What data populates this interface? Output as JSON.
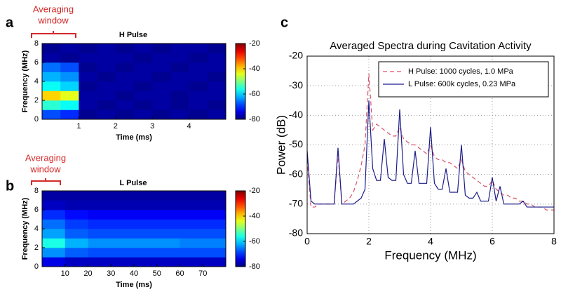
{
  "chart_data": [
    {
      "type": "heatmap",
      "label": "a",
      "title": "H Pulse",
      "annotation": [
        "Averaging",
        "window"
      ],
      "xlabel": "Time (ms)",
      "ylabel": "Frequency (MHz)",
      "cmap": "jet",
      "xbins": [
        0,
        0.5,
        1,
        1.5,
        2,
        2.5,
        3,
        3.5,
        4,
        4.5,
        5
      ],
      "ybins": [
        0,
        1,
        2,
        3,
        4,
        5,
        6,
        7,
        8
      ],
      "z": [
        [
          -68,
          -70,
          -79,
          -78,
          -79,
          -78,
          -79,
          -78,
          -79,
          -78
        ],
        [
          -55,
          -57,
          -78,
          -79,
          -78,
          -79,
          -78,
          -79,
          -78,
          -79
        ],
        [
          -40,
          -44,
          -78,
          -78,
          -79,
          -78,
          -78,
          -79,
          -78,
          -78
        ],
        [
          -57,
          -60,
          -79,
          -78,
          -78,
          -79,
          -78,
          -78,
          -79,
          -78
        ],
        [
          -62,
          -64,
          -78,
          -79,
          -78,
          -78,
          -79,
          -78,
          -78,
          -79
        ],
        [
          -66,
          -68,
          -79,
          -78,
          -79,
          -78,
          -78,
          -79,
          -78,
          -78
        ],
        [
          -78,
          -79,
          -78,
          -78,
          -78,
          -79,
          -78,
          -78,
          -79,
          -78
        ],
        [
          -79,
          -78,
          -79,
          -78,
          -79,
          -78,
          -79,
          -78,
          -78,
          -79
        ]
      ],
      "xlim": [
        0,
        5
      ],
      "ylim": [
        0,
        8
      ],
      "xticks": [
        1,
        2,
        3,
        4
      ],
      "yticks": [
        0,
        2,
        4,
        6,
        8
      ],
      "clim": [
        -80,
        -20
      ],
      "cticks": [
        -20,
        -40,
        -60,
        -80
      ]
    },
    {
      "type": "heatmap",
      "label": "b",
      "title": "L Pulse",
      "annotation": [
        "Averaging",
        "window"
      ],
      "xlabel": "Time (ms)",
      "ylabel": "Frequency (MHz)",
      "cmap": "jet",
      "xbins": [
        0,
        10,
        20,
        30,
        40,
        50,
        60,
        70,
        80
      ],
      "ybins": [
        0,
        1,
        2,
        3,
        4,
        5,
        6,
        7,
        8
      ],
      "z": [
        [
          -74,
          -76,
          -76,
          -76,
          -76,
          -76,
          -76,
          -76
        ],
        [
          -64,
          -67,
          -68,
          -68,
          -68,
          -68,
          -68,
          -68
        ],
        [
          -56,
          -62,
          -64,
          -64,
          -64,
          -64,
          -65,
          -65
        ],
        [
          -63,
          -67,
          -68,
          -68,
          -68,
          -68,
          -68,
          -68
        ],
        [
          -66,
          -69,
          -70,
          -70,
          -70,
          -70,
          -70,
          -70
        ],
        [
          -70,
          -72,
          -73,
          -73,
          -73,
          -73,
          -73,
          -73
        ],
        [
          -76,
          -77,
          -77,
          -77,
          -77,
          -77,
          -77,
          -77
        ],
        [
          -78,
          -78,
          -78,
          -78,
          -78,
          -78,
          -78,
          -78
        ]
      ],
      "xlim": [
        0,
        80
      ],
      "ylim": [
        0,
        8
      ],
      "xticks": [
        10,
        20,
        30,
        40,
        50,
        60,
        70
      ],
      "yticks": [
        0,
        2,
        4,
        6,
        8
      ],
      "clim": [
        -80,
        -20
      ],
      "cticks": [
        -20,
        -40,
        -60,
        -80
      ]
    },
    {
      "type": "line",
      "label": "c",
      "title": "Averaged Spectra during Cavitation Activity",
      "xlabel": "Frequency (MHz)",
      "ylabel": "Power (dB)",
      "grid": true,
      "legend": "upper right",
      "xlim": [
        0,
        8
      ],
      "ylim": [
        -80,
        -20
      ],
      "xticks": [
        0,
        2,
        4,
        6,
        8
      ],
      "yticks": [
        -80,
        -70,
        -60,
        -50,
        -40,
        -30,
        -20
      ],
      "x": [
        0,
        0.125,
        0.25,
        0.375,
        0.5,
        0.625,
        0.75,
        0.875,
        1,
        1.125,
        1.25,
        1.375,
        1.5,
        1.625,
        1.75,
        1.875,
        2,
        2.125,
        2.25,
        2.375,
        2.5,
        2.625,
        2.75,
        2.875,
        3,
        3.125,
        3.25,
        3.375,
        3.5,
        3.625,
        3.75,
        3.875,
        4,
        4.125,
        4.25,
        4.375,
        4.5,
        4.625,
        4.75,
        4.875,
        5,
        5.125,
        5.25,
        5.375,
        5.5,
        5.625,
        5.75,
        5.875,
        6,
        6.125,
        6.25,
        6.375,
        6.5,
        6.625,
        6.75,
        6.875,
        7,
        7.125,
        7.25,
        7.375,
        7.5,
        7.625,
        7.75,
        7.875,
        8
      ],
      "series": [
        {
          "name": "H Pulse: 1000 cycles, 1.0 MPa",
          "color": "#d9546a",
          "linestyle": "dashed",
          "values": [
            -55,
            -71,
            -71,
            -70,
            -70,
            -70,
            -70,
            -70,
            -53,
            -70,
            -69,
            -68,
            -66,
            -62,
            -57,
            -50,
            -26,
            -45,
            -43,
            -44,
            -45,
            -46,
            -47,
            -47,
            -44,
            -48,
            -49,
            -50,
            -50,
            -51,
            -52,
            -53,
            -50,
            -54,
            -55,
            -55,
            -56,
            -56,
            -57,
            -58,
            -55,
            -59,
            -60,
            -61,
            -62,
            -63,
            -64,
            -64,
            -62,
            -65,
            -66,
            -67,
            -67,
            -68,
            -68,
            -69,
            -69,
            -70,
            -70,
            -71,
            -71,
            -71,
            -72,
            -72,
            -72
          ]
        },
        {
          "name": "L Pulse: 600k cycles, 0.23 MPa",
          "color": "#1c1c8a",
          "linestyle": "solid",
          "values": [
            -52,
            -69,
            -70,
            -70,
            -70,
            -70,
            -70,
            -70,
            -51,
            -70,
            -70,
            -70,
            -70,
            -69,
            -68,
            -65,
            -35,
            -58,
            -62,
            -62,
            -48,
            -61,
            -62,
            -62,
            -38,
            -60,
            -63,
            -63,
            -52,
            -63,
            -63,
            -63,
            -44,
            -63,
            -65,
            -65,
            -58,
            -66,
            -66,
            -66,
            -50,
            -67,
            -68,
            -68,
            -66,
            -69,
            -69,
            -69,
            -61,
            -69,
            -64,
            -70,
            -70,
            -70,
            -70,
            -70,
            -69,
            -71,
            -71,
            -71,
            -71,
            -71,
            -71,
            -71,
            -71
          ]
        }
      ]
    }
  ]
}
